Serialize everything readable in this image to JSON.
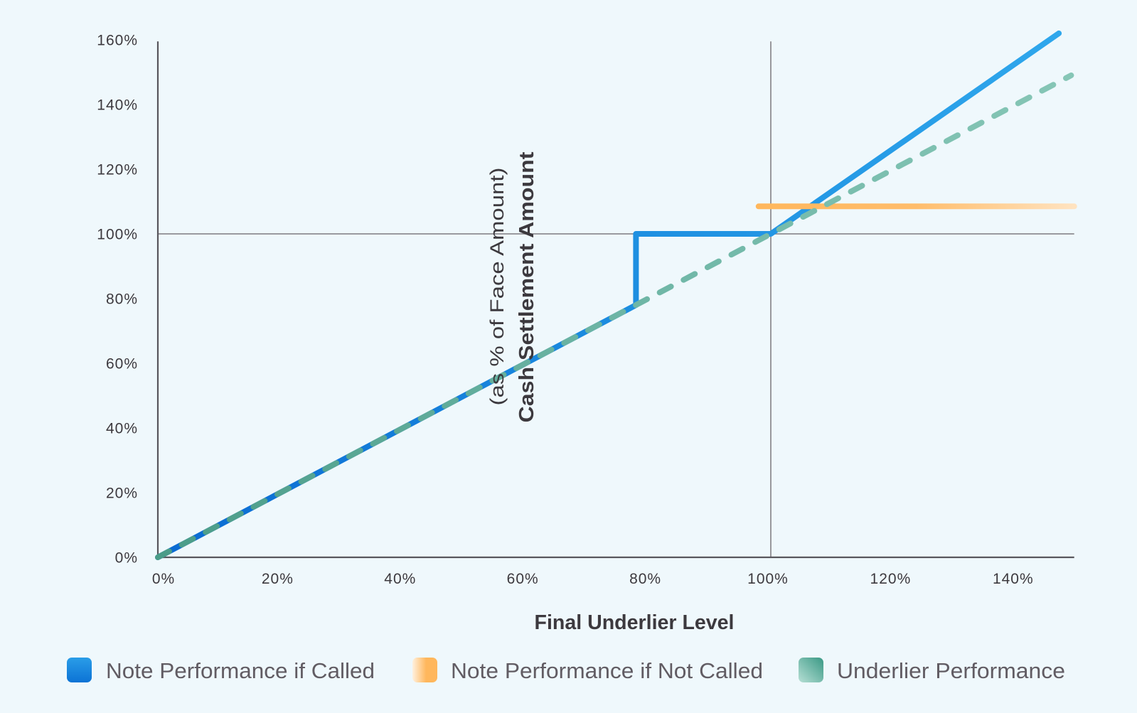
{
  "chart_data": {
    "type": "line",
    "title": "",
    "xlabel": "Final Underlier Level",
    "ylabel": "Cash Settlement Amount",
    "ylabel_sub": "(as % of Face Amount)",
    "xlim": [
      0,
      149.5
    ],
    "ylim": [
      0,
      159.5
    ],
    "grid": false,
    "legend_position": "bottom",
    "x_ticks": [
      0,
      20,
      40,
      60,
      80,
      100,
      120,
      140
    ],
    "x_tick_labels": [
      "0%",
      "20%",
      "40%",
      "60%",
      "80%",
      "100%",
      "120%",
      "140%"
    ],
    "y_ticks": [
      0,
      20,
      40,
      60,
      80,
      100,
      120,
      140,
      160
    ],
    "y_tick_labels": [
      "0%",
      "20%",
      "40%",
      "60%",
      "80%",
      "100%",
      "120%",
      "140%",
      "160%"
    ],
    "reference_lines": [
      {
        "axis": "x",
        "value": 100
      },
      {
        "axis": "y",
        "value": 100
      }
    ],
    "series": [
      {
        "name": "Note Performance if Called",
        "color": "#1A8BE0",
        "style": "solid",
        "gradient": [
          "#0A6AD2",
          "#1C8DE0",
          "#2FA7EC"
        ],
        "legend_swatch": [
          "#2A9DE8",
          "#0C73D5"
        ],
        "points": [
          [
            0,
            0
          ],
          [
            78,
            78
          ],
          [
            78,
            100
          ],
          [
            100,
            100
          ],
          [
            147,
            162
          ]
        ]
      },
      {
        "name": "Note Performance if Not Called",
        "color": "#FFB65A",
        "style": "solid",
        "gradient": [
          "#FFB75C",
          "#FFBD6B",
          "#FFE3C0"
        ],
        "legend_swatch": [
          "#FFF1DF",
          "#FFB75C"
        ],
        "points": [
          [
            98,
            108.5
          ],
          [
            149.5,
            108.5
          ]
        ]
      },
      {
        "name": "Underlier Performance",
        "color": "#6DB5A5",
        "style": "dashed",
        "gradient": [
          "#4A9C88",
          "#6DB5A5",
          "#86C6B6"
        ],
        "legend_swatch": [
          "#B6DFD5",
          "#3A9985"
        ],
        "points": [
          [
            0,
            0
          ],
          [
            149,
            149
          ]
        ]
      }
    ]
  }
}
